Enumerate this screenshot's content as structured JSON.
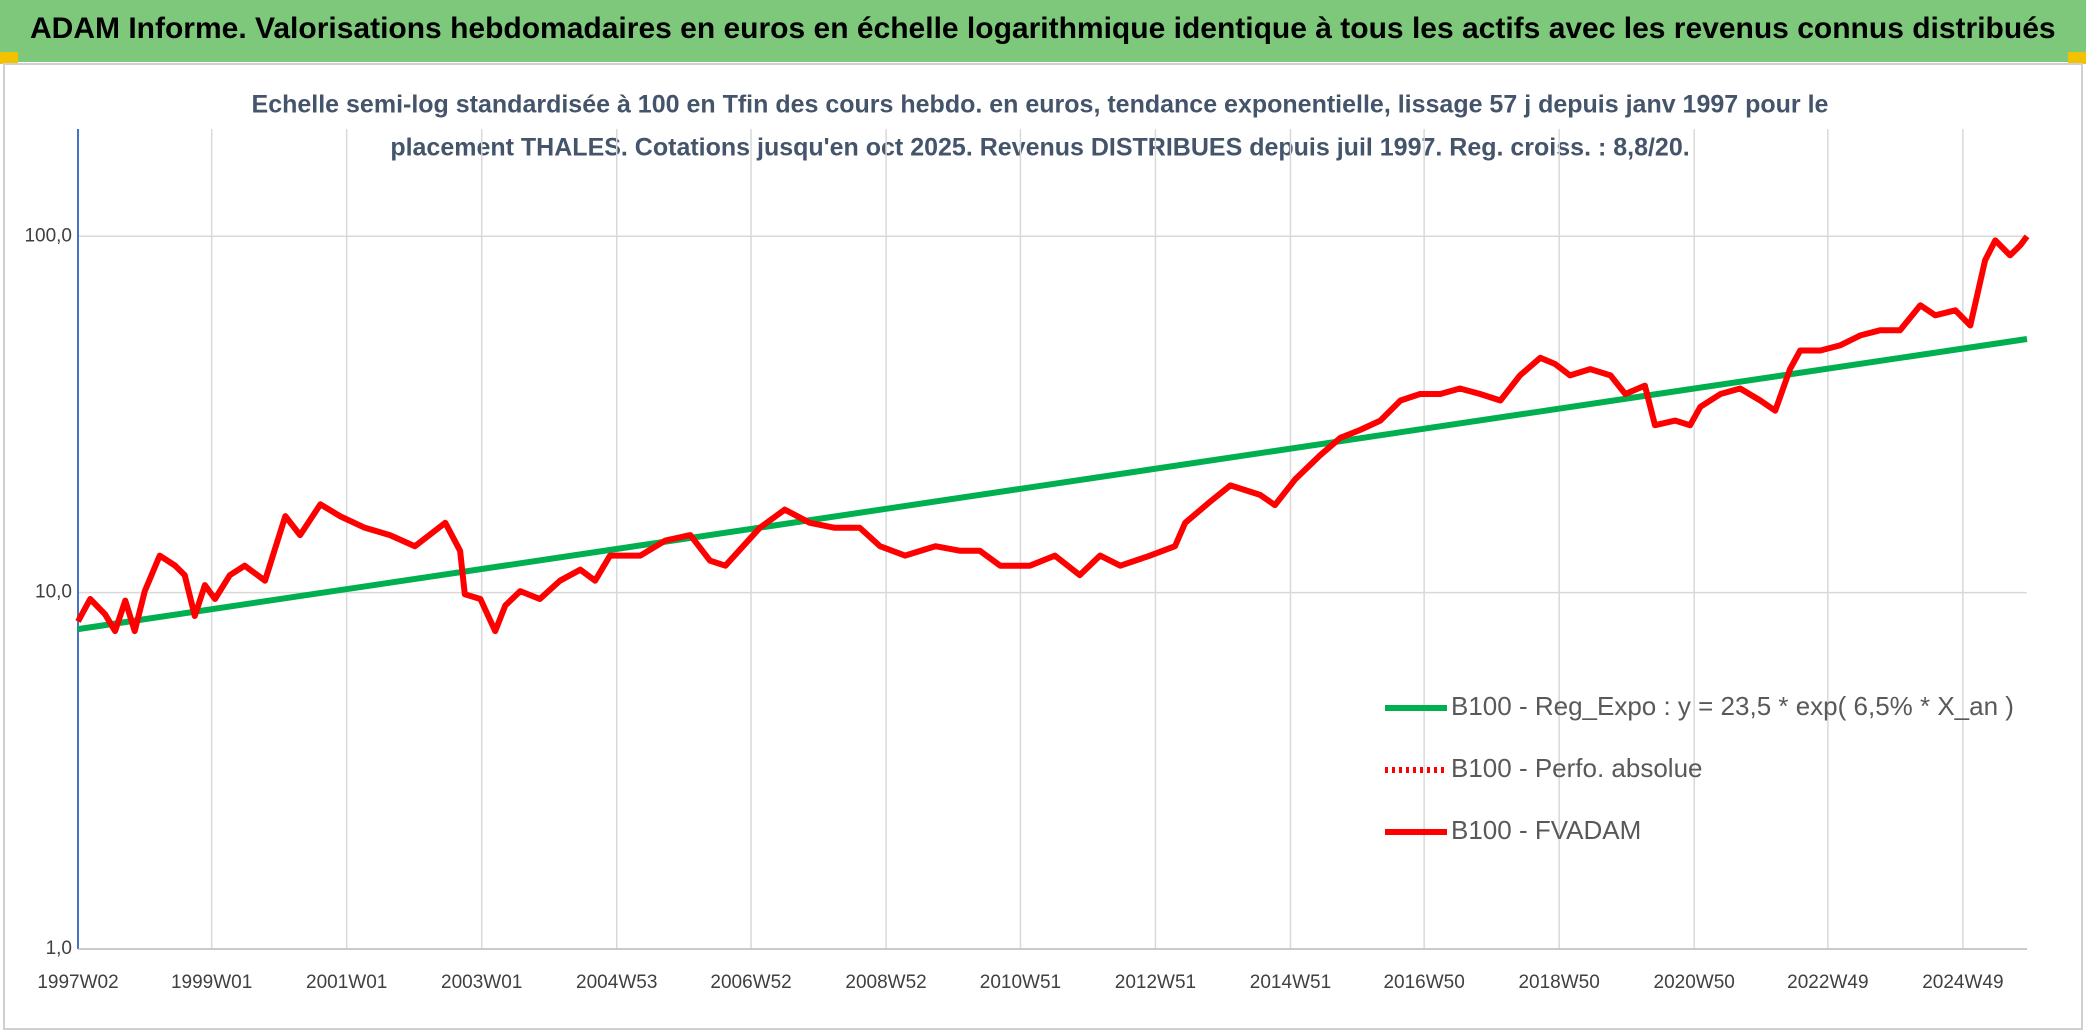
{
  "chart_data": {
    "type": "line",
    "title": "ADAM Informe. Valorisations hebdomadaires en euros en échelle logarithmique identique à tous les actifs avec les revenus connus distribués",
    "subtitle": [
      "Echelle semi-log standardisée à 100 en Tfin des cours hebdo. en euros, tendance exponentielle, lissage 57 j depuis janv 1997 pour le",
      "placement THALES. Cotations jusqu'en oct 2025. Revenus DISTRIBUES depuis juil 1997. Reg. croiss. : 8,8/20."
    ],
    "log_scale": true,
    "grid": true,
    "legend_position": "right",
    "xlim": [
      1997.02,
      2025.89
    ],
    "ylim": [
      1,
      200
    ],
    "yticks": [
      {
        "value": 1,
        "label": "1,0"
      },
      {
        "value": 10,
        "label": "10,0"
      },
      {
        "value": 100,
        "label": "100,0"
      }
    ],
    "xticks": [
      {
        "value": 1997.02,
        "label": "1997W02"
      },
      {
        "value": 1999.0,
        "label": "1999W01"
      },
      {
        "value": 2001.0,
        "label": "2001W01"
      },
      {
        "value": 2003.0,
        "label": "2003W01"
      },
      {
        "value": 2005.0,
        "label": "2004W53"
      },
      {
        "value": 2006.99,
        "label": "2006W52"
      },
      {
        "value": 2008.99,
        "label": "2008W52"
      },
      {
        "value": 2010.98,
        "label": "2010W51"
      },
      {
        "value": 2012.98,
        "label": "2012W51"
      },
      {
        "value": 2014.98,
        "label": "2014W51"
      },
      {
        "value": 2016.96,
        "label": "2016W50"
      },
      {
        "value": 2018.96,
        "label": "2018W50"
      },
      {
        "value": 2020.96,
        "label": "2020W50"
      },
      {
        "value": 2022.94,
        "label": "2022W49"
      },
      {
        "value": 2024.94,
        "label": "2024W49"
      }
    ],
    "series": [
      {
        "name": "B100 - Reg_Expo : y = 23,5 * exp( 6,5% *  X_an )",
        "color": "#00b050",
        "dash": "solid",
        "x": [
          1997.02,
          2025.89
        ],
        "values": [
          7.9,
          51.5
        ]
      },
      {
        "name": "B100 - Perfo. absolue",
        "color": "#ff0000",
        "dash": "dotted",
        "x": [],
        "values": []
      },
      {
        "name": "B100 - FVADAM",
        "color": "#ff0000",
        "dash": "solid",
        "x": [
          1997.02,
          1997.2,
          1997.42,
          1997.57,
          1997.72,
          1997.86,
          1998.01,
          1998.23,
          1998.46,
          1998.6,
          1998.75,
          1998.9,
          1999.05,
          1999.27,
          1999.49,
          1999.79,
          2000.09,
          2000.31,
          2000.61,
          2000.9,
          2001.27,
          2001.64,
          2002.01,
          2002.46,
          2002.68,
          2002.75,
          2002.98,
          2003.2,
          2003.35,
          2003.57,
          2003.86,
          2004.16,
          2004.46,
          2004.68,
          2004.9,
          2005.35,
          2005.72,
          2006.09,
          2006.38,
          2006.61,
          2007.12,
          2007.49,
          2007.86,
          2008.23,
          2008.6,
          2008.9,
          2009.27,
          2009.72,
          2010.09,
          2010.38,
          2010.68,
          2011.12,
          2011.49,
          2011.86,
          2012.16,
          2012.46,
          2012.9,
          2013.27,
          2013.42,
          2013.79,
          2014.09,
          2014.53,
          2014.75,
          2015.05,
          2015.42,
          2015.72,
          2016.01,
          2016.31,
          2016.61,
          2016.9,
          2017.2,
          2017.49,
          2017.79,
          2018.09,
          2018.38,
          2018.68,
          2018.9,
          2019.12,
          2019.42,
          2019.72,
          2019.94,
          2020.23,
          2020.38,
          2020.68,
          2020.9,
          2021.05,
          2021.35,
          2021.64,
          2021.94,
          2022.16,
          2022.38,
          2022.53,
          2022.83,
          2023.12,
          2023.42,
          2023.72,
          2024.01,
          2024.31,
          2024.53,
          2024.83,
          2025.05,
          2025.27,
          2025.42,
          2025.64,
          2025.79,
          2025.89
        ],
        "values": [
          8.3,
          9.6,
          8.7,
          7.8,
          9.5,
          7.8,
          10.1,
          12.7,
          11.9,
          11.2,
          8.6,
          10.5,
          9.6,
          11.2,
          11.9,
          10.8,
          16.4,
          14.5,
          17.7,
          16.4,
          15.2,
          14.5,
          13.5,
          15.7,
          13.1,
          9.9,
          9.6,
          7.8,
          9.2,
          10.1,
          9.6,
          10.8,
          11.6,
          10.8,
          12.7,
          12.7,
          14.0,
          14.5,
          12.3,
          11.9,
          15.2,
          17.1,
          15.7,
          15.2,
          15.2,
          13.5,
          12.7,
          13.5,
          13.1,
          13.1,
          11.9,
          11.9,
          12.7,
          11.2,
          12.7,
          11.9,
          12.7,
          13.5,
          15.7,
          18.0,
          20.0,
          18.8,
          17.6,
          20.8,
          24.3,
          27.2,
          28.6,
          30.4,
          34.6,
          36.1,
          36.1,
          37.4,
          36.1,
          34.6,
          40.7,
          45.6,
          43.8,
          40.7,
          42.4,
          40.7,
          36.1,
          38.1,
          29.5,
          30.4,
          29.5,
          33.2,
          36.1,
          37.4,
          34.6,
          32.4,
          42.4,
          47.8,
          47.8,
          49.4,
          52.7,
          54.5,
          54.5,
          64.0,
          60.0,
          62.0,
          56.2,
          85.6,
          97.4,
          88.4,
          94.3,
          100
        ]
      }
    ]
  }
}
